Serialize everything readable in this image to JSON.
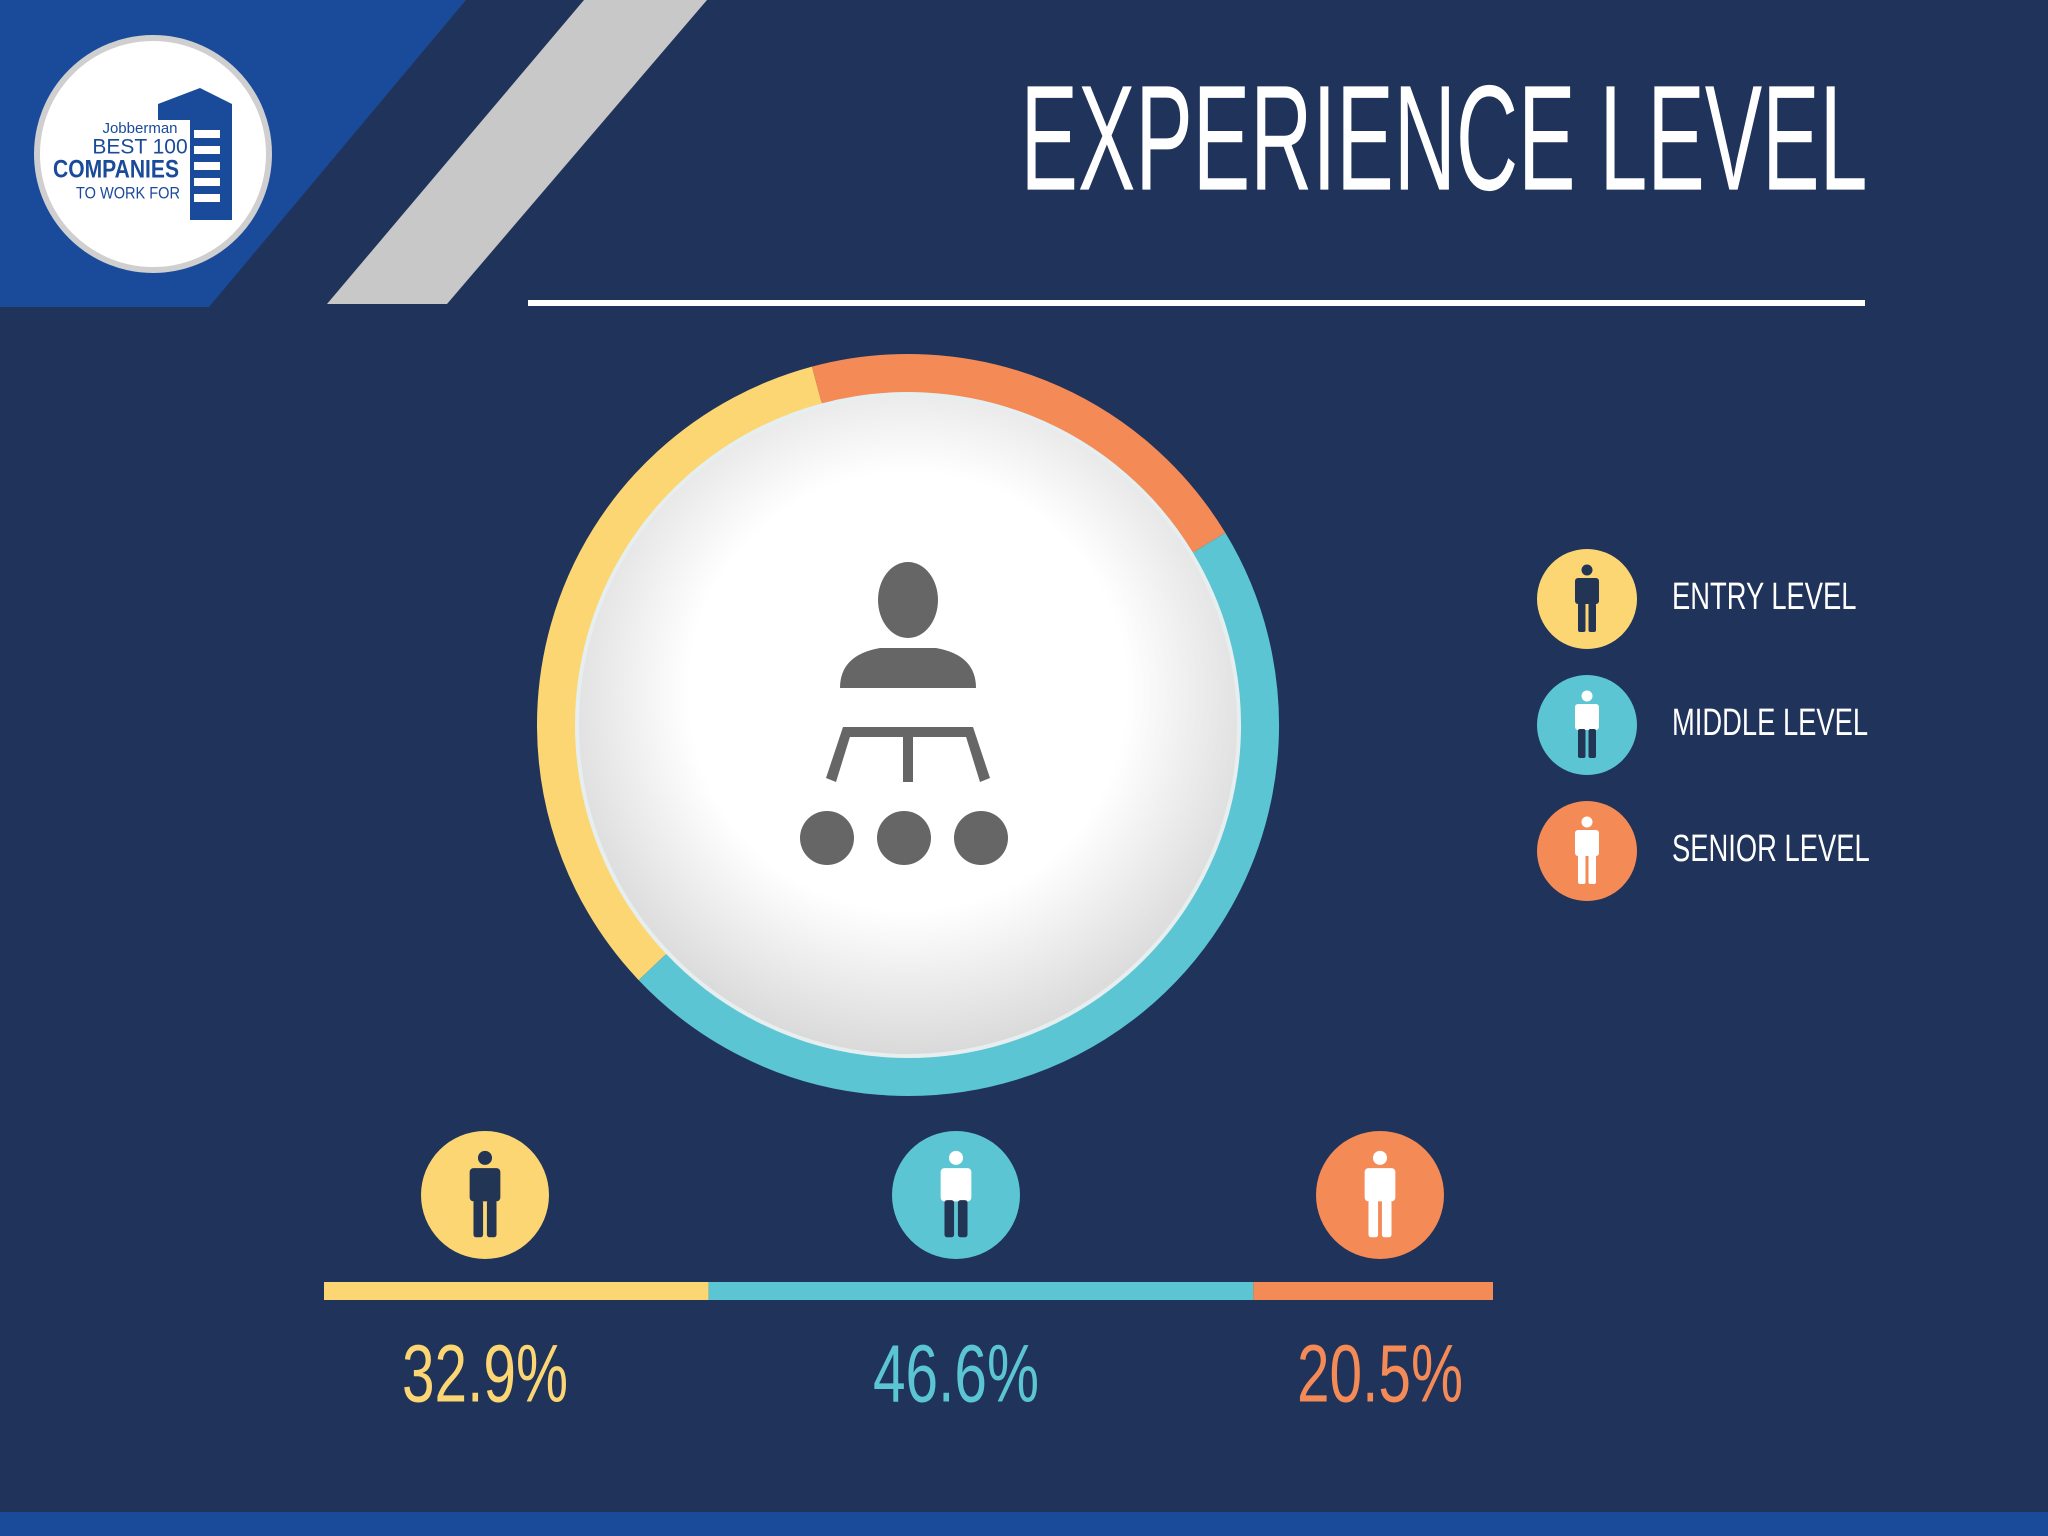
{
  "logo": {
    "lines": [
      "Jobberman",
      "BEST 100",
      "COMPANIES",
      "TO WORK FOR"
    ]
  },
  "chart_data": {
    "type": "donut",
    "title": "EXPERIENCE LEVEL",
    "categories": [
      "ENTRY LEVEL",
      "MIDDLE LEVEL",
      "SENIOR LEVEL"
    ],
    "values": [
      32.9,
      46.6,
      20.5
    ],
    "value_labels": [
      "32.9%",
      "46.6%",
      "20.5%"
    ],
    "colors": [
      "#fcd672",
      "#5bc5d3",
      "#f48a56"
    ]
  }
}
